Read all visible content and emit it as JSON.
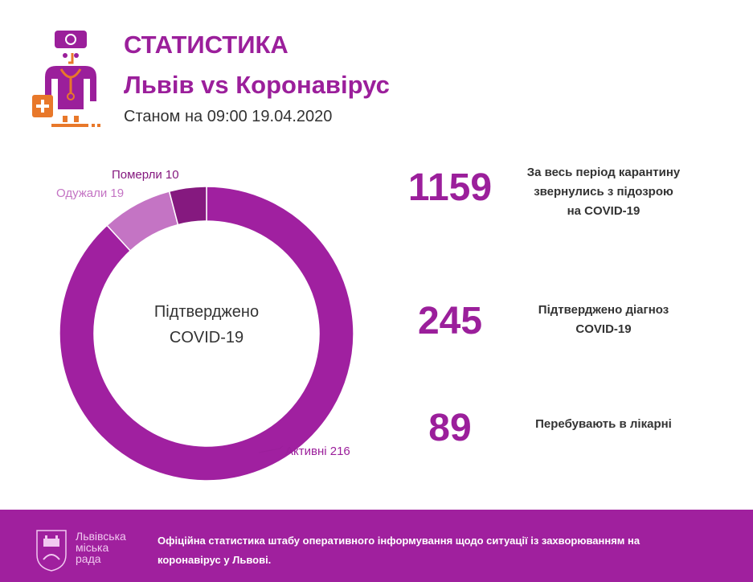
{
  "header": {
    "title": "СТАТИСТИКА",
    "subtitle": "Львів vs Коронавірус",
    "date": "Станом на 09:00 19.04.2020",
    "logo_icon": "doctor-icon"
  },
  "chart_data": {
    "type": "pie",
    "variant": "donut",
    "center_label": [
      "Підтверджено",
      "COVID-19"
    ],
    "categories": [
      "Активні",
      "Одужали",
      "Померли"
    ],
    "values": [
      216,
      19,
      10
    ],
    "labels": [
      "Активні 216",
      "Одужали 19",
      "Померли 10"
    ],
    "colors": [
      "#a020a0",
      "#c474c4",
      "#85197f"
    ]
  },
  "stats": [
    {
      "value": "1159",
      "desc": [
        "За весь період карантину",
        "звернулись з підозрою",
        "на COVID-19"
      ]
    },
    {
      "value": "245",
      "desc": [
        "Підтверджено діагноз",
        "COVID-19"
      ]
    },
    {
      "value": "89",
      "desc": [
        "Перебувають в лікарні"
      ]
    }
  ],
  "footer": {
    "city_logo": [
      "Львівська",
      "міська",
      "рада"
    ],
    "text": "Офіційна статистика штабу оперативного інформування щодо ситуації із захворюванням на коронавірус у Львові.",
    "bg": "#a0209e"
  }
}
